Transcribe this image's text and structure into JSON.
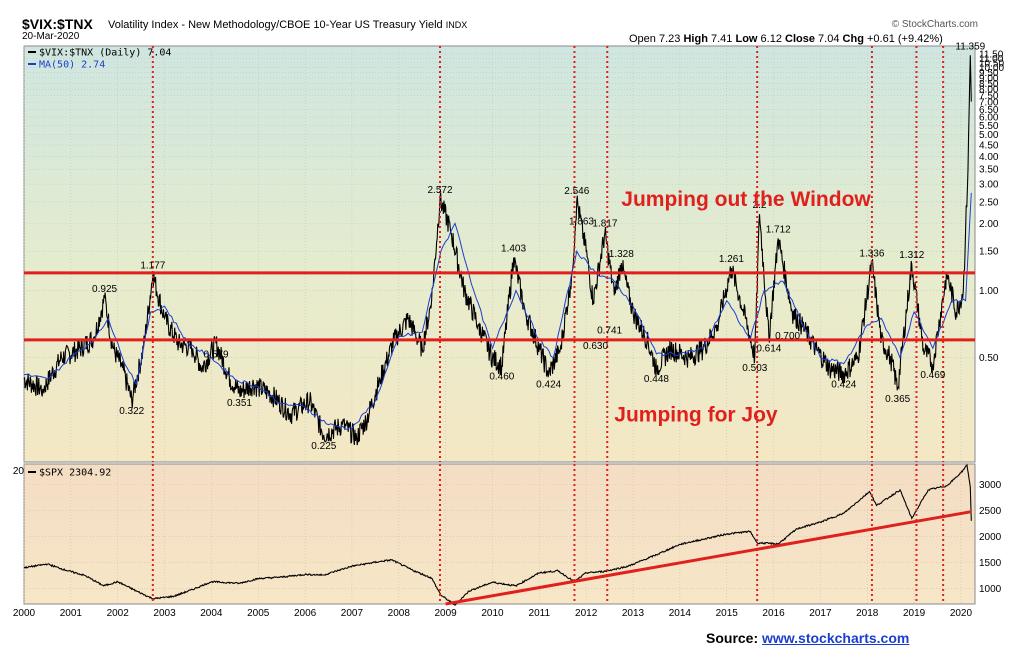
{
  "header": {
    "symbol": "$VIX:$TNX",
    "description": "Volatility Index - New Methodology/CBOE 10-Year US Treasury Yield",
    "exchange": "INDX",
    "date": "20-Mar-2020",
    "brand": "© StockCharts.com",
    "open_label": "Open",
    "open": "7.23",
    "high_label": "High",
    "high": "7.41",
    "low_label": "Low",
    "low": "6.12",
    "close_label": "Close",
    "close": "7.04",
    "chg_label": "Chg",
    "chg": "+0.61 (+9.42%)"
  },
  "source": {
    "label": "Source:",
    "link": "www.stockcharts.com"
  },
  "colors": {
    "red": "#e0201c",
    "blue": "#1a3fd0",
    "price": "#000000"
  },
  "chart_data": [
    {
      "type": "line",
      "scale": "log",
      "legend": [
        {
          "text": "$VIX:$TNX (Daily) 7.04",
          "color": "#000000"
        },
        {
          "text": "MA(50) 2.74",
          "color": "#1a3fd0"
        }
      ],
      "x_tick_labels": [
        "2000",
        "2001",
        "2002",
        "2003",
        "2004",
        "2005",
        "2006",
        "2007",
        "2008",
        "2009",
        "2010",
        "2011",
        "2012",
        "2013",
        "2014",
        "2015",
        "2016",
        "2017",
        "2018",
        "2019",
        "2020"
      ],
      "y_tick_labels": [
        "0.50",
        "1.00",
        "1.50",
        "2.00",
        "2.50",
        "3.00",
        "3.50",
        "4.00",
        "4.50",
        "5.00",
        "5.50",
        "6.00",
        "6.50",
        "7.00",
        "7.50",
        "8.00",
        "8.50",
        "9.00",
        "9.50",
        "10.00",
        "10.50",
        "11.00",
        "11.50"
      ],
      "ylim": [
        0.17,
        12.5
      ],
      "series": [
        {
          "points": [
            [
              2000.0,
              0.4
            ],
            [
              2000.4,
              0.36
            ],
            [
              2000.8,
              0.5
            ],
            [
              2001.2,
              0.55
            ],
            [
              2001.5,
              0.62
            ],
            [
              2001.72,
              0.925
            ],
            [
              2001.9,
              0.55
            ],
            [
              2002.1,
              0.45
            ],
            [
              2002.3,
              0.322
            ],
            [
              2002.55,
              0.55
            ],
            [
              2002.75,
              1.177
            ],
            [
              2003.0,
              0.75
            ],
            [
              2003.3,
              0.58
            ],
            [
              2003.6,
              0.55
            ],
            [
              2003.8,
              0.45
            ],
            [
              2004.1,
              0.579
            ],
            [
              2004.4,
              0.4
            ],
            [
              2004.6,
              0.351
            ],
            [
              2004.9,
              0.38
            ],
            [
              2005.3,
              0.34
            ],
            [
              2005.7,
              0.28
            ],
            [
              2006.1,
              0.32
            ],
            [
              2006.4,
              0.225
            ],
            [
              2006.8,
              0.25
            ],
            [
              2007.1,
              0.22
            ],
            [
              2007.3,
              0.26
            ],
            [
              2007.6,
              0.4
            ],
            [
              2007.9,
              0.6
            ],
            [
              2008.2,
              0.75
            ],
            [
              2008.5,
              0.55
            ],
            [
              2008.7,
              0.9
            ],
            [
              2008.88,
              2.572
            ],
            [
              2009.1,
              1.9
            ],
            [
              2009.4,
              1.0
            ],
            [
              2009.7,
              0.7
            ],
            [
              2010.0,
              0.5
            ],
            [
              2010.2,
              0.46
            ],
            [
              2010.45,
              1.403
            ],
            [
              2010.7,
              0.8
            ],
            [
              2011.0,
              0.55
            ],
            [
              2011.2,
              0.424
            ],
            [
              2011.45,
              0.55
            ],
            [
              2011.7,
              1.2
            ],
            [
              2011.8,
              2.546
            ],
            [
              2012.0,
              1.5
            ],
            [
              2012.15,
              0.9
            ],
            [
              2012.4,
              1.817
            ],
            [
              2012.6,
              0.95
            ],
            [
              2012.75,
              1.328
            ],
            [
              2013.0,
              0.8
            ],
            [
              2013.3,
              0.6
            ],
            [
              2013.5,
              0.448
            ],
            [
              2013.8,
              0.55
            ],
            [
              2014.2,
              0.5
            ],
            [
              2014.5,
              0.55
            ],
            [
              2014.8,
              0.7
            ],
            [
              2015.1,
              1.261
            ],
            [
              2015.4,
              0.75
            ],
            [
              2015.6,
              0.503
            ],
            [
              2015.7,
              2.2
            ],
            [
              2015.9,
              0.614
            ],
            [
              2016.1,
              1.712
            ],
            [
              2016.4,
              0.8
            ],
            [
              2016.6,
              0.7
            ],
            [
              2016.9,
              0.55
            ],
            [
              2017.2,
              0.45
            ],
            [
              2017.5,
              0.424
            ],
            [
              2017.8,
              0.5
            ],
            [
              2018.1,
              1.336
            ],
            [
              2018.3,
              0.6
            ],
            [
              2018.5,
              0.5
            ],
            [
              2018.65,
              0.365
            ],
            [
              2018.95,
              1.312
            ],
            [
              2019.2,
              0.55
            ],
            [
              2019.4,
              0.469
            ],
            [
              2019.7,
              1.2
            ],
            [
              2019.9,
              0.8
            ],
            [
              2020.05,
              1.0
            ],
            [
              2020.15,
              3.5
            ],
            [
              2020.2,
              11.359
            ],
            [
              2020.22,
              7.04
            ]
          ]
        },
        {
          "name": "MA(50)",
          "points": [
            [
              2000.0,
              0.42
            ],
            [
              2000.5,
              0.4
            ],
            [
              2001.0,
              0.5
            ],
            [
              2001.5,
              0.6
            ],
            [
              2001.8,
              0.75
            ],
            [
              2002.1,
              0.5
            ],
            [
              2002.4,
              0.38
            ],
            [
              2002.7,
              0.8
            ],
            [
              2003.0,
              0.85
            ],
            [
              2003.5,
              0.58
            ],
            [
              2004.0,
              0.5
            ],
            [
              2004.5,
              0.4
            ],
            [
              2005.0,
              0.37
            ],
            [
              2005.5,
              0.31
            ],
            [
              2006.0,
              0.3
            ],
            [
              2006.5,
              0.25
            ],
            [
              2007.0,
              0.24
            ],
            [
              2007.5,
              0.32
            ],
            [
              2008.0,
              0.62
            ],
            [
              2008.5,
              0.65
            ],
            [
              2008.9,
              1.5
            ],
            [
              2009.2,
              2.0
            ],
            [
              2009.6,
              1.0
            ],
            [
              2010.0,
              0.55
            ],
            [
              2010.5,
              1.0
            ],
            [
              2011.0,
              0.6
            ],
            [
              2011.3,
              0.5
            ],
            [
              2011.8,
              1.5
            ],
            [
              2012.2,
              1.2
            ],
            [
              2012.6,
              1.1
            ],
            [
              2013.0,
              0.85
            ],
            [
              2013.5,
              0.52
            ],
            [
              2014.0,
              0.52
            ],
            [
              2014.5,
              0.55
            ],
            [
              2015.0,
              0.9
            ],
            [
              2015.5,
              0.6
            ],
            [
              2015.8,
              1.0
            ],
            [
              2016.2,
              1.1
            ],
            [
              2016.6,
              0.72
            ],
            [
              2017.0,
              0.5
            ],
            [
              2017.5,
              0.47
            ],
            [
              2018.0,
              0.7
            ],
            [
              2018.3,
              0.75
            ],
            [
              2018.7,
              0.5
            ],
            [
              2019.0,
              0.8
            ],
            [
              2019.4,
              0.55
            ],
            [
              2019.8,
              0.9
            ],
            [
              2020.1,
              0.9
            ],
            [
              2020.22,
              2.74
            ]
          ]
        }
      ],
      "value_labels": [
        {
          "text": "0.925",
          "x": 2001.72,
          "y": 0.925
        },
        {
          "text": "0.322",
          "x": 2002.3,
          "y": 0.322
        },
        {
          "text": "1.177",
          "x": 2002.75,
          "y": 1.177
        },
        {
          "text": "0.579",
          "x": 2004.1,
          "y": 0.579
        },
        {
          "text": "0.351",
          "x": 2004.6,
          "y": 0.351
        },
        {
          "text": "0.225",
          "x": 2006.4,
          "y": 0.225
        },
        {
          "text": "2.572",
          "x": 2008.88,
          "y": 2.572
        },
        {
          "text": "1.403",
          "x": 2010.45,
          "y": 1.403
        },
        {
          "text": "0.460",
          "x": 2010.2,
          "y": 0.46
        },
        {
          "text": "0.424",
          "x": 2011.2,
          "y": 0.424
        },
        {
          "text": "2.546",
          "x": 2011.8,
          "y": 2.546
        },
        {
          "text": "1.863",
          "x": 2011.9,
          "y": 1.863
        },
        {
          "text": "1.817",
          "x": 2012.4,
          "y": 1.817
        },
        {
          "text": "1.328",
          "x": 2012.75,
          "y": 1.328
        },
        {
          "text": "0.741",
          "x": 2012.5,
          "y": 0.741
        },
        {
          "text": "0.630",
          "x": 2012.2,
          "y": 0.63
        },
        {
          "text": "0.448",
          "x": 2013.5,
          "y": 0.448
        },
        {
          "text": "1.261",
          "x": 2015.1,
          "y": 1.261
        },
        {
          "text": "0.503",
          "x": 2015.6,
          "y": 0.503
        },
        {
          "text": "0.614",
          "x": 2015.9,
          "y": 0.614
        },
        {
          "text": "2.2",
          "x": 2015.7,
          "y": 2.2
        },
        {
          "text": "1.712",
          "x": 2016.1,
          "y": 1.712
        },
        {
          "text": "0.700",
          "x": 2016.3,
          "y": 0.7
        },
        {
          "text": "0.424",
          "x": 2017.5,
          "y": 0.424
        },
        {
          "text": "1.336",
          "x": 2018.1,
          "y": 1.336
        },
        {
          "text": "0.365",
          "x": 2018.65,
          "y": 0.365
        },
        {
          "text": "1.312",
          "x": 2018.95,
          "y": 1.312
        },
        {
          "text": "0.469",
          "x": 2019.4,
          "y": 0.469
        },
        {
          "text": "11.359",
          "x": 2020.2,
          "y": 11.359
        }
      ],
      "horizontal_lines": [
        1.2,
        0.6
      ],
      "event_lines": [
        2002.75,
        2008.88,
        2011.75,
        2012.45,
        2015.65,
        2018.1,
        2019.05,
        2019.62
      ],
      "annotations": [
        {
          "text": "Jumping out the Window",
          "x": 2012.75,
          "y": 2.6
        },
        {
          "text": "Jumping for Joy",
          "x": 2012.6,
          "y": 0.28
        }
      ],
      "grid": true
    },
    {
      "type": "line",
      "legend": [
        {
          "text": "$SPX 2304.92",
          "color": "#000000"
        }
      ],
      "x_tick_labels": [
        "2000",
        "2001",
        "2002",
        "2003",
        "2004",
        "2005",
        "2006",
        "2007",
        "2008",
        "2009",
        "2010",
        "2011",
        "2012",
        "2013",
        "2014",
        "2015",
        "2016",
        "2017",
        "2018",
        "2019",
        "2020"
      ],
      "y_tick_labels": [
        "1000",
        "1500",
        "2000",
        "2500",
        "3000"
      ],
      "ylim": [
        700,
        3400
      ],
      "series": [
        {
          "points": [
            [
              2000.0,
              1400
            ],
            [
              2000.5,
              1470
            ],
            [
              2000.9,
              1350
            ],
            [
              2001.3,
              1250
            ],
            [
              2001.7,
              1050
            ],
            [
              2002.0,
              1130
            ],
            [
              2002.4,
              950
            ],
            [
              2002.75,
              800
            ],
            [
              2003.2,
              850
            ],
            [
              2003.6,
              980
            ],
            [
              2004.0,
              1130
            ],
            [
              2004.6,
              1100
            ],
            [
              2005.0,
              1190
            ],
            [
              2005.5,
              1220
            ],
            [
              2006.0,
              1270
            ],
            [
              2006.4,
              1260
            ],
            [
              2007.0,
              1430
            ],
            [
              2007.6,
              1520
            ],
            [
              2007.85,
              1550
            ],
            [
              2008.3,
              1350
            ],
            [
              2008.7,
              1200
            ],
            [
              2008.9,
              870
            ],
            [
              2009.2,
              680
            ],
            [
              2009.5,
              950
            ],
            [
              2010.0,
              1120
            ],
            [
              2010.5,
              1050
            ],
            [
              2011.0,
              1300
            ],
            [
              2011.4,
              1340
            ],
            [
              2011.75,
              1130
            ],
            [
              2012.0,
              1300
            ],
            [
              2012.4,
              1330
            ],
            [
              2012.9,
              1430
            ],
            [
              2013.5,
              1650
            ],
            [
              2014.0,
              1850
            ],
            [
              2014.5,
              1950
            ],
            [
              2015.0,
              2050
            ],
            [
              2015.5,
              2100
            ],
            [
              2015.65,
              1880
            ],
            [
              2016.1,
              1860
            ],
            [
              2016.5,
              2150
            ],
            [
              2017.0,
              2280
            ],
            [
              2017.5,
              2450
            ],
            [
              2018.05,
              2870
            ],
            [
              2018.2,
              2600
            ],
            [
              2018.7,
              2900
            ],
            [
              2018.95,
              2350
            ],
            [
              2019.3,
              2900
            ],
            [
              2019.7,
              2980
            ],
            [
              2020.0,
              3230
            ],
            [
              2020.13,
              3380
            ],
            [
              2020.2,
              2950
            ],
            [
              2020.22,
              2304.92
            ]
          ]
        }
      ],
      "trendline": [
        [
          2009.0,
          700
        ],
        [
          2020.22,
          2480
        ]
      ],
      "event_lines": [
        2002.75,
        2008.88,
        2011.75,
        2012.45,
        2015.65,
        2018.1,
        2019.05,
        2019.62
      ],
      "grid": true
    }
  ]
}
